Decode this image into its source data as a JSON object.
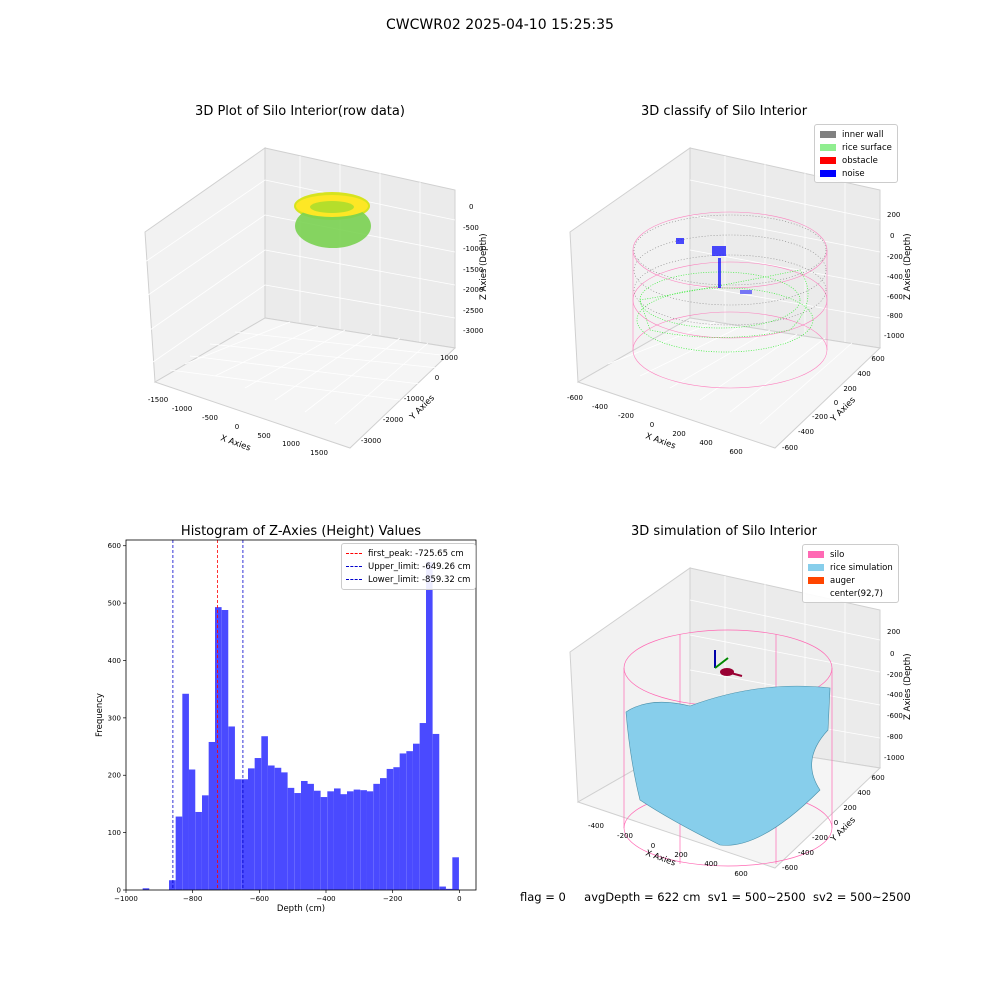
{
  "suptitle": "CWCWR02 2025-04-10 15:25:35",
  "footer": {
    "flag": "flag = 0",
    "avg": "avgDepth = 622 cm",
    "sv1": "sv1 = 500~2500",
    "sv2": "sv2 = 500~2500"
  },
  "chart_data": [
    {
      "type": "scatter",
      "title": "3D Plot of Silo Interior(row data)",
      "xlabel": "X Axies",
      "ylabel": "Y Axies",
      "zlabel": "Z Axies (Depth)",
      "x_ticks": [
        "-1500",
        "-1000",
        "-500",
        "0",
        "500",
        "1000",
        "1500"
      ],
      "y_ticks": [
        "1000",
        "0",
        "-1000",
        "-2000",
        "-3000"
      ],
      "z_ticks": [
        "0",
        "-500",
        "-1000",
        "-1500",
        "-2000",
        "-2500",
        "-3000"
      ],
      "colormap": "viridis"
    },
    {
      "type": "scatter",
      "title": "3D classify of Silo Interior",
      "xlabel": "X Axies",
      "ylabel": "Y Axies",
      "zlabel": "Z Axies (Depth)",
      "x_ticks": [
        "-600",
        "-400",
        "-200",
        "0",
        "200",
        "400",
        "600"
      ],
      "y_ticks": [
        "600",
        "400",
        "200",
        "0",
        "-200",
        "-400",
        "-600"
      ],
      "z_ticks": [
        "200",
        "0",
        "-200",
        "-400",
        "-600",
        "-800",
        "-1000"
      ],
      "legend": [
        {
          "label": "inner wall",
          "color": "#808080"
        },
        {
          "label": "rice surface",
          "color": "#90ee90"
        },
        {
          "label": "obstacle",
          "color": "#ff0000"
        },
        {
          "label": "noise",
          "color": "#0000ff"
        }
      ]
    },
    {
      "type": "bar",
      "title": "Histogram of Z-Axies (Height) Values",
      "xlabel": "Depth (cm)",
      "ylabel": "Frequency",
      "xlim": [
        -1000,
        50
      ],
      "ylim": [
        0,
        610
      ],
      "x_ticks": [
        -1000,
        -800,
        -600,
        -400,
        -200,
        0
      ],
      "y_ticks": [
        0,
        100,
        200,
        300,
        400,
        500,
        600
      ],
      "bar_color": "#4a4aff",
      "bin_width": 19.8,
      "bins_start": [
        -950,
        -871,
        -851,
        -831,
        -812,
        -792,
        -772,
        -752,
        -733,
        -713,
        -693,
        -673,
        -653,
        -634,
        -614,
        -594,
        -574,
        -554,
        -535,
        -515,
        -495,
        -475,
        -456,
        -436,
        -416,
        -396,
        -376,
        -357,
        -337,
        -317,
        -297,
        -278,
        -258,
        -238,
        -218,
        -198,
        -179,
        -159,
        -139,
        -119,
        -100,
        -80,
        -60,
        -40,
        -21,
        -1
      ],
      "values": [
        3,
        17,
        128,
        342,
        210,
        136,
        165,
        258,
        493,
        488,
        285,
        193,
        193,
        212,
        230,
        268,
        217,
        213,
        205,
        178,
        169,
        190,
        185,
        173,
        162,
        172,
        177,
        167,
        172,
        175,
        174,
        172,
        185,
        195,
        211,
        214,
        238,
        242,
        255,
        291,
        572,
        272,
        6,
        2,
        57
      ],
      "vlines": [
        {
          "label": "first_peak: -725.65 cm",
          "x": -725.65,
          "color": "#ff0000"
        },
        {
          "label": "Upper_limit: -649.26 cm",
          "x": -649.26,
          "color": "#0000cc"
        },
        {
          "label": "Lower_limit: -859.32 cm",
          "x": -859.32,
          "color": "#0000cc"
        }
      ]
    },
    {
      "type": "scatter",
      "title": "3D simulation of Silo Interior",
      "xlabel": "X Axies",
      "ylabel": "Y Axies",
      "zlabel": "Z Axies (Depth)",
      "x_ticks": [
        "-400",
        "-200",
        "0",
        "200",
        "400",
        "600"
      ],
      "y_ticks": [
        "600",
        "400",
        "200",
        "0",
        "-200",
        "-400",
        "-600"
      ],
      "z_ticks": [
        "200",
        "0",
        "-200",
        "-400",
        "-600",
        "-800",
        "-1000"
      ],
      "legend": [
        {
          "label": "silo",
          "color": "#ff69b4"
        },
        {
          "label": "rice simulation",
          "color": "#87ceeb"
        },
        {
          "label": "auger",
          "color": "#ff4500"
        },
        {
          "label": "center(92,7)",
          "color": ""
        }
      ]
    }
  ]
}
